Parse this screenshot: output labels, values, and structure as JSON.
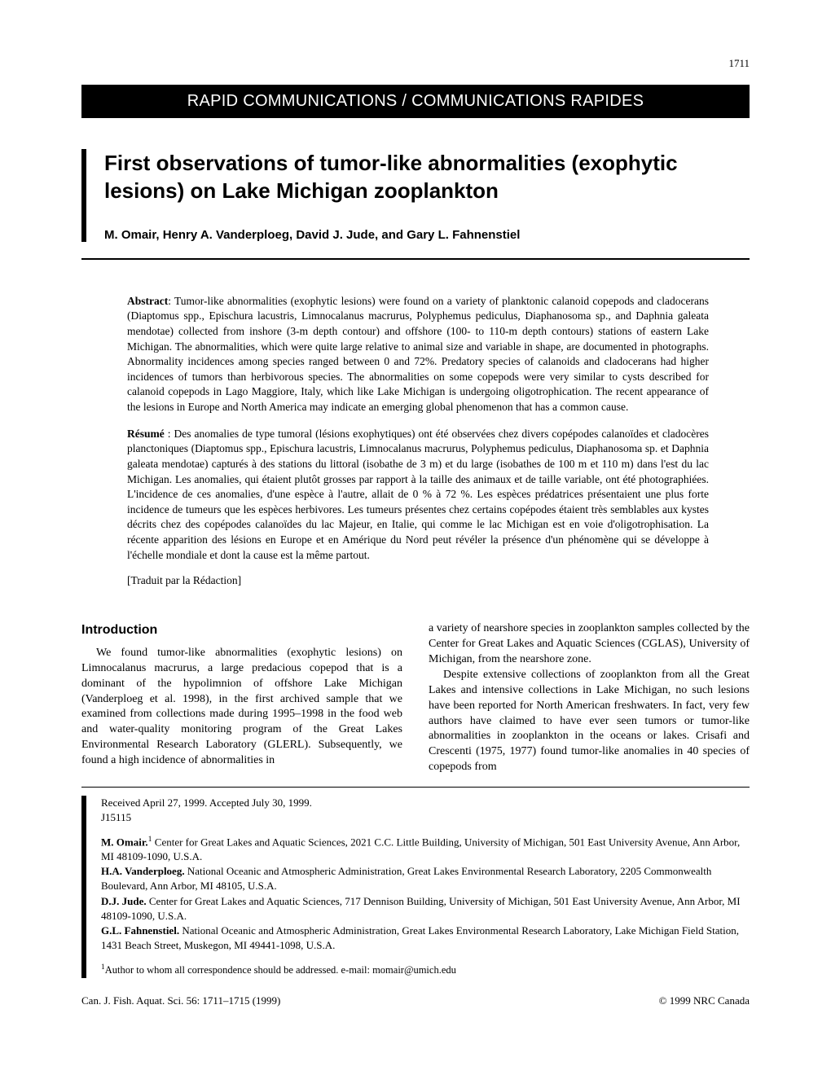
{
  "page_number": "1711",
  "banner": "RAPID COMMUNICATIONS / COMMUNICATIONS RAPIDES",
  "title": "First observations of tumor-like abnormalities (exophytic lesions) on Lake Michigan zooplankton",
  "authors": "M. Omair, Henry A. Vanderploeg, David J. Jude, and Gary L. Fahnenstiel",
  "abstract": {
    "label": "Abstract",
    "text": ": Tumor-like abnormalities (exophytic lesions) were found on a variety of planktonic calanoid copepods and cladocerans (Diaptomus spp., Epischura lacustris, Limnocalanus macrurus, Polyphemus pediculus, Diaphanosoma sp., and Daphnia galeata mendotae) collected from inshore (3-m depth contour) and offshore (100- to 110-m depth contours) stations of eastern Lake Michigan. The abnormalities, which were quite large relative to animal size and variable in shape, are documented in photographs. Abnormality incidences among species ranged between 0 and 72%. Predatory species of calanoids and cladocerans had higher incidences of tumors than herbivorous species. The abnormalities on some copepods were very similar to cysts described for calanoid copepods in Lago Maggiore, Italy, which like Lake Michigan is undergoing oligotrophication. The recent appearance of the lesions in Europe and North America may indicate an emerging global phenomenon that has a common cause."
  },
  "resume": {
    "label": "Résumé",
    "text": " : Des anomalies de type tumoral (lésions exophytiques) ont été observées chez divers copépodes calanoïdes et cladocères planctoniques (Diaptomus spp., Epischura lacustris, Limnocalanus macrurus, Polyphemus pediculus, Diaphanosoma sp. et Daphnia galeata mendotae) capturés à des stations du littoral (isobathe de 3 m) et du large (isobathes de 100 m et 110 m) dans l'est du lac Michigan. Les anomalies, qui étaient plutôt grosses par rapport à la taille des animaux et de taille variable, ont été photographiées. L'incidence de ces anomalies, d'une espèce à l'autre, allait de 0 % à 72 %. Les espèces prédatrices présentaient une plus forte incidence de tumeurs que les espèces herbivores. Les tumeurs présentes chez certains copépodes étaient très semblables aux kystes décrits chez des copépodes calanoïdes du lac Majeur, en Italie, qui comme le lac Michigan est en voie d'oligotrophisation. La récente apparition des lésions en Europe et en Amérique du Nord peut révéler la présence d'un phénomène qui se développe à l'échelle mondiale et dont la cause est la même partout."
  },
  "translation_note": "[Traduit par la Rédaction]",
  "intro_heading": "Introduction",
  "body": {
    "left": "We found tumor-like abnormalities (exophytic lesions) on Limnocalanus macrurus, a large predacious copepod that is a dominant of the hypolimnion of offshore Lake Michigan (Vanderploeg et al. 1998), in the first archived sample that we examined from collections made during 1995–1998 in the food web and water-quality monitoring program of the Great Lakes Environmental Research Laboratory (GLERL). Subsequently, we found a high incidence of abnormalities in",
    "right_p1": "a variety of nearshore species in zooplankton samples collected by the Center for Great Lakes and Aquatic Sciences (CGLAS), University of Michigan, from the nearshore zone.",
    "right_p2": "Despite extensive collections of zooplankton from all the Great Lakes and intensive collections in Lake Michigan, no such lesions have been reported for North American freshwaters. In fact, very few authors have claimed to have ever seen tumors or tumor-like abnormalities in zooplankton in the oceans or lakes. Crisafi and Crescenti (1975, 1977) found tumor-like anomalies in 40 species of copepods from"
  },
  "footer": {
    "received": "Received April 27, 1999. Accepted July 30, 1999.",
    "ms_id": "J15115",
    "affiliations": [
      {
        "name": "M. Omair.",
        "sup": "1",
        "text": " Center for Great Lakes and Aquatic Sciences, 2021 C.C. Little Building, University of Michigan, 501 East University Avenue, Ann Arbor, MI 48109-1090, U.S.A."
      },
      {
        "name": "H.A. Vanderploeg.",
        "sup": "",
        "text": " National Oceanic and Atmospheric Administration, Great Lakes Environmental Research Laboratory, 2205 Commonwealth Boulevard, Ann Arbor, MI 48105, U.S.A."
      },
      {
        "name": "D.J. Jude.",
        "sup": "",
        "text": " Center for Great Lakes and Aquatic Sciences, 717 Dennison Building, University of Michigan, 501 East University Avenue, Ann Arbor, MI 48109-1090, U.S.A."
      },
      {
        "name": "G.L. Fahnenstiel.",
        "sup": "",
        "text": " National Oceanic and Atmospheric Administration, Great Lakes Environmental Research Laboratory, Lake Michigan Field Station, 1431 Beach Street, Muskegon, MI 49441-1098, U.S.A."
      }
    ],
    "corresponding": "Author to whom all correspondence should be addressed. e-mail: momair@umich.edu"
  },
  "citation": "Can. J. Fish. Aquat. Sci. 56: 1711–1715 (1999)",
  "copyright": "© 1999 NRC Canada"
}
